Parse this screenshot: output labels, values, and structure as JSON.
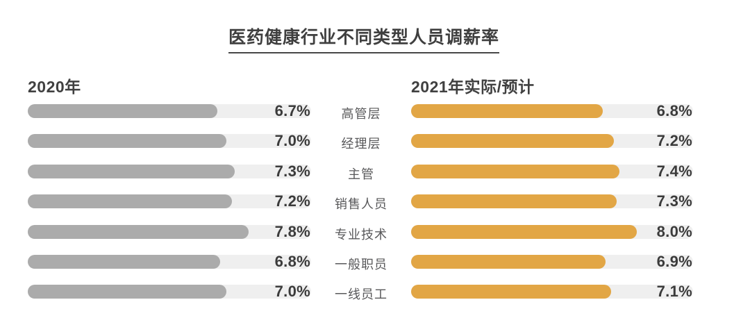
{
  "title": "医药健康行业不同类型人员调薪率",
  "left": {
    "header": "2020年"
  },
  "right": {
    "header": "2021年实际/预计"
  },
  "colors": {
    "bar_2020": "#ababab",
    "bar_2021": "#e2a645",
    "track": "#efefef",
    "value_text": "#3b3b3b",
    "label_text": "#58585a",
    "title_text": "#3f3f3f"
  },
  "chart_data": {
    "type": "bar",
    "orientation": "horizontal",
    "title": "医药健康行业不同类型人员调薪率",
    "categories": [
      "高管层",
      "经理层",
      "主管",
      "销售人员",
      "专业技术",
      "一般职员",
      "一线员工"
    ],
    "series": [
      {
        "name": "2020年",
        "values": [
          6.7,
          7.0,
          7.3,
          7.2,
          7.8,
          6.8,
          7.0
        ]
      },
      {
        "name": "2021年实际/预计",
        "values": [
          6.8,
          7.2,
          7.4,
          7.3,
          8.0,
          6.9,
          7.1
        ]
      }
    ],
    "value_suffix": "%",
    "xlim": [
      0,
      10
    ],
    "grid": false,
    "legend_position": "column-headers"
  }
}
